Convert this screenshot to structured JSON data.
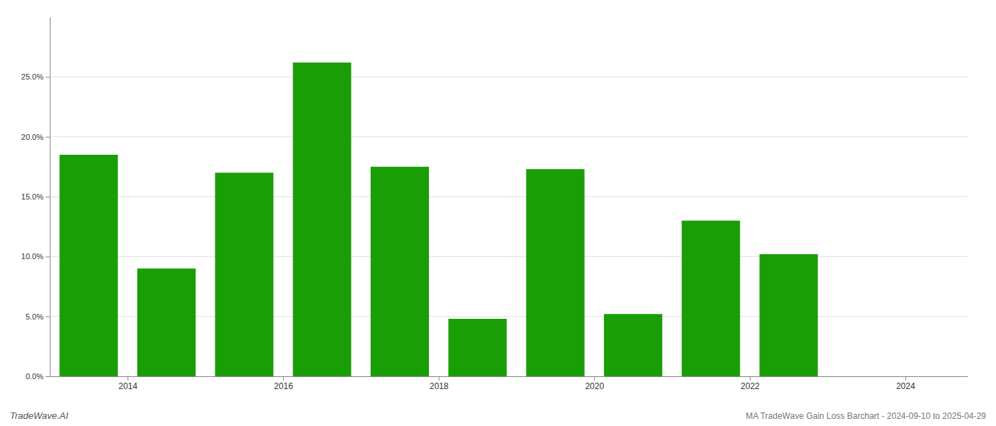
{
  "chart_data": {
    "type": "bar",
    "x": [
      2013.5,
      2014.5,
      2015.5,
      2016.5,
      2017.5,
      2018.5,
      2019.5,
      2020.5,
      2021.5,
      2022.5
    ],
    "values": [
      0.185,
      0.09,
      0.17,
      0.262,
      0.175,
      0.048,
      0.173,
      0.052,
      0.13,
      0.102
    ],
    "color": "#1a9e06",
    "xlim": [
      2013.0,
      2024.8
    ],
    "xticks": [
      2014,
      2016,
      2018,
      2020,
      2022,
      2024
    ],
    "ylim": [
      0,
      0.3
    ],
    "yticks": [
      {
        "value": 0.0,
        "label": "0.0%"
      },
      {
        "value": 0.05,
        "label": "5.0%"
      },
      {
        "value": 0.1,
        "label": "10.0%"
      },
      {
        "value": 0.15,
        "label": "15.0%"
      },
      {
        "value": 0.2,
        "label": "20.0%"
      },
      {
        "value": 0.25,
        "label": "25.0%"
      }
    ],
    "grid": true,
    "annotations": [
      "TradeWave.AI",
      "MA TradeWave Gain Loss Barchart - 2024-09-10 to 2025-04-29"
    ]
  }
}
